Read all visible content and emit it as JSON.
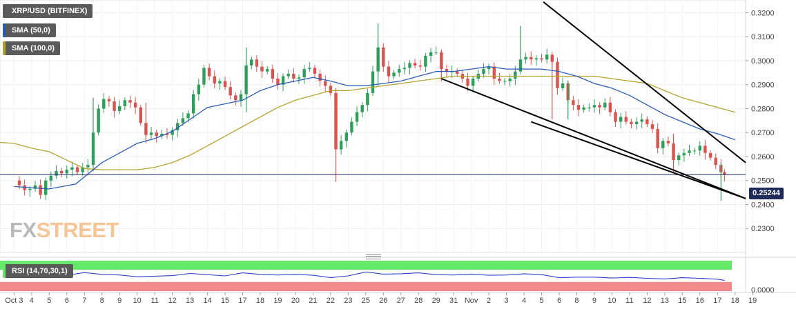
{
  "legend": {
    "pair": "XRP/USD (BITFINEX)",
    "sma50": "SMA (50,0)",
    "sma100": "SMA (100,0)",
    "rsi": "RSI (14,70,30,1)"
  },
  "logo": {
    "fx": "FX",
    "street": "STREET"
  },
  "price_tag": "0.25244",
  "colors": {
    "up": "#2e9e5a",
    "down": "#d9534f",
    "sma50": "#2a5bb8",
    "sma100": "#b5a22a",
    "rsi_line": "#2a3fc7",
    "rsi_overbought": "#66e86b",
    "rsi_oversold": "#f28a8a",
    "trendline": "#000000",
    "price_line": "#1e2a5a"
  },
  "chart_data": [
    {
      "type": "candlestick",
      "title": "XRP/USD (BITFINEX)",
      "xlabel": "",
      "ylabel": "",
      "ylim": [
        0.22,
        0.3253
      ],
      "y_ticks": [
        "0.2300",
        "0.2400",
        "0.2500",
        "0.2600",
        "0.2700",
        "0.2800",
        "0.2900",
        "0.3000",
        "0.3100",
        "0.3200"
      ],
      "x_ticks": [
        "Oct 3",
        "4",
        "5",
        "6",
        "7",
        "8",
        "9",
        "10",
        "11",
        "12",
        "13",
        "14",
        "15",
        "17",
        "18",
        "19",
        "20",
        "21",
        "22",
        "23",
        "25",
        "26",
        "27",
        "28",
        "29",
        "31",
        "Nov",
        "2",
        "3",
        "4",
        "5",
        "6",
        "8",
        "9",
        "10",
        "11",
        "12",
        "13",
        "15",
        "16",
        "17",
        "18",
        "19"
      ],
      "x_positions": [
        0,
        1,
        2,
        3,
        4,
        5,
        6,
        7,
        8,
        9,
        10,
        11,
        12,
        13,
        14,
        15,
        16,
        17,
        18,
        19,
        20,
        21,
        22,
        23,
        24,
        25,
        26,
        27,
        28,
        29,
        30,
        31,
        32,
        33,
        34,
        35,
        36,
        37,
        38,
        39,
        40,
        41,
        42
      ],
      "x_range": [
        -0.8,
        41.6
      ],
      "last_price": 0.25244,
      "grid": true,
      "close_path": [
        [
          0,
          0.25
        ],
        [
          0.3,
          0.248
        ],
        [
          0.6,
          0.246
        ],
        [
          0.9,
          0.2465
        ],
        [
          1.2,
          0.248
        ],
        [
          1.5,
          0.244
        ],
        [
          1.8,
          0.25
        ],
        [
          2.1,
          0.252
        ],
        [
          2.4,
          0.254
        ],
        [
          2.7,
          0.253
        ],
        [
          3,
          0.2545
        ],
        [
          3.3,
          0.2555
        ],
        [
          3.6,
          0.2535
        ],
        [
          3.9,
          0.2555
        ],
        [
          4.2,
          0.2565
        ],
        [
          4.5,
          0.27
        ],
        [
          4.8,
          0.28
        ],
        [
          5.1,
          0.284
        ],
        [
          5.4,
          0.283
        ],
        [
          5.7,
          0.279
        ],
        [
          6,
          0.281
        ],
        [
          6.3,
          0.2835
        ],
        [
          6.6,
          0.2825
        ],
        [
          6.9,
          0.2805
        ],
        [
          7.2,
          0.274
        ],
        [
          7.5,
          0.269
        ],
        [
          7.8,
          0.27
        ],
        [
          8.1,
          0.2685
        ],
        [
          8.4,
          0.2695
        ],
        [
          8.7,
          0.269
        ],
        [
          9,
          0.271
        ],
        [
          9.3,
          0.274
        ],
        [
          9.6,
          0.276
        ],
        [
          9.9,
          0.278
        ],
        [
          10.2,
          0.286
        ],
        [
          10.5,
          0.29
        ],
        [
          10.8,
          0.297
        ],
        [
          11.1,
          0.2935
        ],
        [
          11.4,
          0.2905
        ],
        [
          11.7,
          0.2915
        ],
        [
          12,
          0.289
        ],
        [
          12.3,
          0.2855
        ],
        [
          12.6,
          0.2835
        ],
        [
          12.9,
          0.286
        ],
        [
          13.2,
          0.298
        ],
        [
          13.5,
          0.3005
        ],
        [
          13.8,
          0.2975
        ],
        [
          14.1,
          0.2955
        ],
        [
          14.4,
          0.2965
        ],
        [
          14.7,
          0.2925
        ],
        [
          15,
          0.29
        ],
        [
          15.3,
          0.2935
        ],
        [
          15.6,
          0.2945
        ],
        [
          15.9,
          0.2925
        ],
        [
          16.2,
          0.293
        ],
        [
          16.5,
          0.2965
        ],
        [
          16.8,
          0.297
        ],
        [
          17.1,
          0.2945
        ],
        [
          17.4,
          0.2915
        ],
        [
          17.7,
          0.2895
        ],
        [
          18,
          0.2865
        ],
        [
          18.3,
          0.263
        ],
        [
          18.6,
          0.2665
        ],
        [
          18.9,
          0.27
        ],
        [
          19.2,
          0.2745
        ],
        [
          19.5,
          0.2785
        ],
        [
          19.8,
          0.2815
        ],
        [
          20.1,
          0.2865
        ],
        [
          20.4,
          0.2955
        ],
        [
          20.7,
          0.3055
        ],
        [
          21,
          0.2975
        ],
        [
          21.3,
          0.2935
        ],
        [
          21.6,
          0.295
        ],
        [
          21.9,
          0.2965
        ],
        [
          22.2,
          0.297
        ],
        [
          22.5,
          0.299
        ],
        [
          22.8,
          0.298
        ],
        [
          23.1,
          0.2975
        ],
        [
          23.4,
          0.302
        ],
        [
          23.7,
          0.3035
        ],
        [
          24,
          0.3035
        ],
        [
          24.3,
          0.2965
        ],
        [
          24.6,
          0.2955
        ],
        [
          24.9,
          0.2955
        ],
        [
          25.2,
          0.2945
        ],
        [
          25.5,
          0.2925
        ],
        [
          25.8,
          0.2895
        ],
        [
          26.1,
          0.2925
        ],
        [
          26.4,
          0.2945
        ],
        [
          26.7,
          0.2965
        ],
        [
          27,
          0.2975
        ],
        [
          27.3,
          0.2925
        ],
        [
          27.6,
          0.2915
        ],
        [
          27.9,
          0.2915
        ],
        [
          28.2,
          0.2925
        ],
        [
          28.5,
          0.2955
        ],
        [
          28.8,
          0.3005
        ],
        [
          29.1,
          0.3015
        ],
        [
          29.4,
          0.3005
        ],
        [
          29.7,
          0.301
        ],
        [
          30,
          0.3005
        ],
        [
          30.3,
          0.3025
        ],
        [
          30.6,
          0.2995
        ],
        [
          30.9,
          0.2885
        ],
        [
          31.2,
          0.2905
        ],
        [
          31.5,
          0.2835
        ],
        [
          31.8,
          0.2815
        ],
        [
          32.1,
          0.2795
        ],
        [
          32.4,
          0.2805
        ],
        [
          32.7,
          0.2805
        ],
        [
          33,
          0.2815
        ],
        [
          33.3,
          0.2805
        ],
        [
          33.6,
          0.2825
        ],
        [
          33.9,
          0.2785
        ],
        [
          34.2,
          0.2745
        ],
        [
          34.5,
          0.2765
        ],
        [
          34.8,
          0.2745
        ],
        [
          35.1,
          0.2735
        ],
        [
          35.4,
          0.2745
        ],
        [
          35.7,
          0.2755
        ],
        [
          36,
          0.2735
        ],
        [
          36.3,
          0.2715
        ],
        [
          36.6,
          0.2635
        ],
        [
          36.9,
          0.2665
        ],
        [
          37.2,
          0.2655
        ],
        [
          37.5,
          0.2585
        ],
        [
          37.8,
          0.2605
        ],
        [
          38.1,
          0.2615
        ],
        [
          38.4,
          0.2625
        ],
        [
          38.7,
          0.2625
        ],
        [
          39,
          0.2645
        ],
        [
          39.3,
          0.2615
        ],
        [
          39.6,
          0.2595
        ],
        [
          39.9,
          0.2565
        ],
        [
          40.2,
          0.2535
        ],
        [
          40.4,
          0.2524
        ]
      ],
      "spikes": [
        [
          4.5,
          0.2575,
          0.2845
        ],
        [
          7.5,
          0.2655,
          0.2825
        ],
        [
          13.2,
          0.2785,
          0.3055
        ],
        [
          18.3,
          0.2495,
          0.2885
        ],
        [
          20.7,
          0.2895,
          0.3155
        ],
        [
          24.3,
          0.2915,
          0.3045
        ],
        [
          28.8,
          0.2955,
          0.3145
        ],
        [
          30.6,
          0.2755,
          0.3005
        ],
        [
          31.5,
          0.2755,
          0.2915
        ],
        [
          37.5,
          0.2535,
          0.2695
        ],
        [
          40.2,
          0.2415,
          0.2575
        ]
      ],
      "sma50": [
        [
          0,
          0.2475
        ],
        [
          2,
          0.2465
        ],
        [
          3.5,
          0.2485
        ],
        [
          5,
          0.2575
        ],
        [
          6,
          0.2615
        ],
        [
          7,
          0.2655
        ],
        [
          8,
          0.2675
        ],
        [
          9,
          0.2705
        ],
        [
          10,
          0.2755
        ],
        [
          11,
          0.2805
        ],
        [
          12,
          0.282
        ],
        [
          13,
          0.2835
        ],
        [
          14,
          0.2875
        ],
        [
          15,
          0.29
        ],
        [
          16,
          0.2915
        ],
        [
          17,
          0.293
        ],
        [
          18,
          0.2915
        ],
        [
          19,
          0.2895
        ],
        [
          20,
          0.2895
        ],
        [
          21,
          0.2905
        ],
        [
          22,
          0.2915
        ],
        [
          23,
          0.2935
        ],
        [
          24,
          0.2955
        ],
        [
          25,
          0.2955
        ],
        [
          26,
          0.2965
        ],
        [
          27,
          0.2975
        ],
        [
          28,
          0.2965
        ],
        [
          29,
          0.2965
        ],
        [
          30,
          0.2965
        ],
        [
          31,
          0.2955
        ],
        [
          32,
          0.2935
        ],
        [
          33,
          0.2905
        ],
        [
          34,
          0.2885
        ],
        [
          35,
          0.2855
        ],
        [
          36,
          0.2815
        ],
        [
          37,
          0.2775
        ],
        [
          38,
          0.2745
        ],
        [
          39,
          0.2715
        ],
        [
          40,
          0.2695
        ],
        [
          41,
          0.267
        ]
      ],
      "sma100": [
        [
          -0.8,
          0.2659
        ],
        [
          0,
          0.2655
        ],
        [
          1,
          0.2635
        ],
        [
          2,
          0.262
        ],
        [
          3,
          0.2585
        ],
        [
          4,
          0.255
        ],
        [
          5,
          0.2545
        ],
        [
          6,
          0.2545
        ],
        [
          7,
          0.2545
        ],
        [
          8,
          0.2555
        ],
        [
          9,
          0.2575
        ],
        [
          10,
          0.2605
        ],
        [
          11,
          0.2645
        ],
        [
          12,
          0.2685
        ],
        [
          13,
          0.2725
        ],
        [
          14,
          0.2765
        ],
        [
          15,
          0.2805
        ],
        [
          16,
          0.2835
        ],
        [
          17,
          0.2855
        ],
        [
          18,
          0.2875
        ],
        [
          19,
          0.2875
        ],
        [
          20,
          0.2885
        ],
        [
          21,
          0.2895
        ],
        [
          22,
          0.2905
        ],
        [
          23,
          0.2915
        ],
        [
          24,
          0.2925
        ],
        [
          25,
          0.2935
        ],
        [
          26,
          0.2935
        ],
        [
          27,
          0.2935
        ],
        [
          28,
          0.2935
        ],
        [
          29,
          0.2935
        ],
        [
          30,
          0.2935
        ],
        [
          31,
          0.2935
        ],
        [
          32,
          0.2935
        ],
        [
          33,
          0.2935
        ],
        [
          34,
          0.2925
        ],
        [
          35,
          0.2915
        ],
        [
          36,
          0.2905
        ],
        [
          37,
          0.2875
        ],
        [
          38,
          0.2845
        ],
        [
          39,
          0.2825
        ],
        [
          40,
          0.2805
        ],
        [
          41,
          0.2785
        ]
      ],
      "trendlines": [
        [
          [
            29.4,
            0.2745
          ],
          [
            41.6,
            0.2425
          ]
        ],
        [
          [
            24.3,
            0.2925
          ],
          [
            41.6,
            0.2425
          ]
        ]
      ],
      "upper_trendline": [
        [
          30.1,
          0.3245
        ],
        [
          41.6,
          0.2575
        ]
      ]
    },
    {
      "type": "line",
      "title": "RSI (14,70,30,1)",
      "xlabel": "",
      "ylabel": "",
      "ylim": [
        0,
        100
      ],
      "y_ticks": [
        "0.0000"
      ],
      "x_range": [
        -0.8,
        41.6
      ],
      "bands": {
        "overbought": 70,
        "oversold": 30
      },
      "values": [
        [
          0,
          49
        ],
        [
          1,
          46
        ],
        [
          2,
          51
        ],
        [
          3,
          52
        ],
        [
          4,
          61
        ],
        [
          5,
          55
        ],
        [
          6,
          53
        ],
        [
          7,
          47
        ],
        [
          8,
          49
        ],
        [
          9,
          51
        ],
        [
          10,
          58
        ],
        [
          11,
          54
        ],
        [
          12,
          50
        ],
        [
          13,
          60
        ],
        [
          14,
          55
        ],
        [
          15,
          53
        ],
        [
          16,
          55
        ],
        [
          17,
          52
        ],
        [
          18,
          44
        ],
        [
          19,
          50
        ],
        [
          20,
          63
        ],
        [
          21,
          56
        ],
        [
          22,
          57
        ],
        [
          23,
          60
        ],
        [
          24,
          54
        ],
        [
          25,
          53
        ],
        [
          26,
          56
        ],
        [
          27,
          52
        ],
        [
          28,
          53
        ],
        [
          29,
          57
        ],
        [
          30,
          54
        ],
        [
          31,
          44
        ],
        [
          32,
          46
        ],
        [
          33,
          46
        ],
        [
          34,
          43
        ],
        [
          35,
          45
        ],
        [
          36,
          42
        ],
        [
          37,
          40
        ],
        [
          38,
          44
        ],
        [
          39,
          42
        ],
        [
          40,
          39
        ],
        [
          40.4,
          35
        ]
      ]
    }
  ]
}
